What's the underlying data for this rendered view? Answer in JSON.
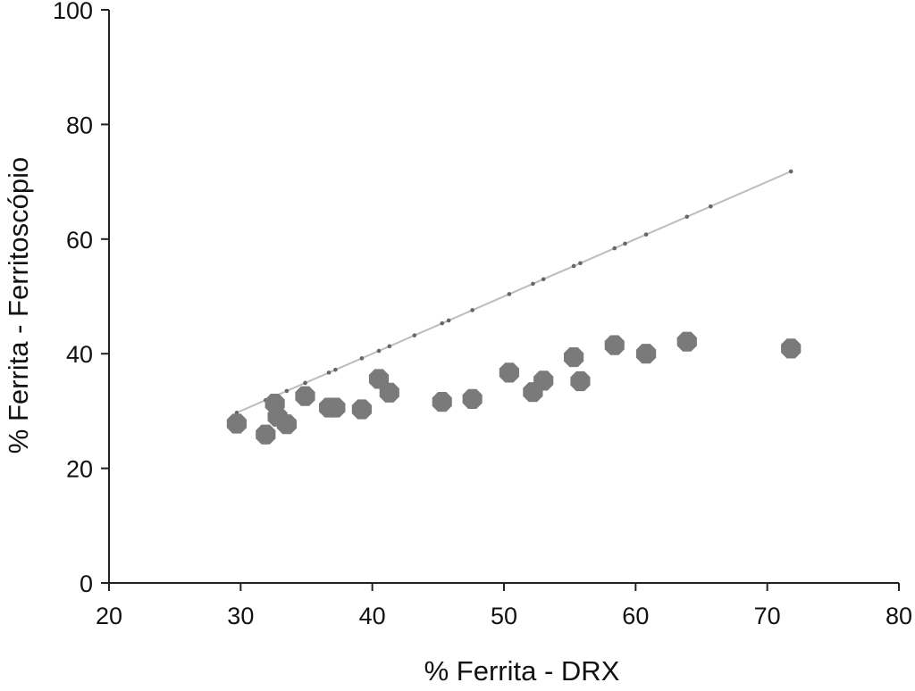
{
  "chart_data": {
    "type": "scatter",
    "title": "",
    "xlabel": "% Ferrita - DRX",
    "ylabel": "% Ferrita - Ferritoscópio",
    "xlim": [
      20,
      80
    ],
    "ylim": [
      0,
      100
    ],
    "xticks": [
      20,
      30,
      40,
      50,
      60,
      70,
      80
    ],
    "yticks": [
      0,
      20,
      40,
      60,
      80,
      100
    ],
    "grid": false,
    "legend": "none",
    "colors": {
      "points": "#7a7a7a",
      "reference_line": "#bdbdbd",
      "reference_points": "#666666"
    },
    "series": [
      {
        "values": [
          {
            "x": 29.7,
            "y": 27.8
          },
          {
            "x": 31.9,
            "y": 25.9
          },
          {
            "x": 32.6,
            "y": 31.3
          },
          {
            "x": 32.8,
            "y": 29.0
          },
          {
            "x": 33.5,
            "y": 27.7
          },
          {
            "x": 34.9,
            "y": 32.6
          },
          {
            "x": 36.7,
            "y": 30.6
          },
          {
            "x": 37.2,
            "y": 30.6
          },
          {
            "x": 39.2,
            "y": 30.3
          },
          {
            "x": 40.5,
            "y": 35.6
          },
          {
            "x": 41.3,
            "y": 33.2
          },
          {
            "x": 45.3,
            "y": 31.6
          },
          {
            "x": 47.6,
            "y": 32.1
          },
          {
            "x": 50.4,
            "y": 36.7
          },
          {
            "x": 52.2,
            "y": 33.3
          },
          {
            "x": 53.0,
            "y": 35.3
          },
          {
            "x": 55.3,
            "y": 39.4
          },
          {
            "x": 55.8,
            "y": 35.2
          },
          {
            "x": 58.4,
            "y": 41.5
          },
          {
            "x": 60.8,
            "y": 40.0
          },
          {
            "x": 63.9,
            "y": 42.1
          },
          {
            "x": 71.8,
            "y": 40.9
          }
        ]
      }
    ],
    "reference_line": {
      "x": [
        29.7,
        31.9,
        32.6,
        33.5,
        34.9,
        36.7,
        37.2,
        39.2,
        40.5,
        41.3,
        43.2,
        45.3,
        45.8,
        47.6,
        50.4,
        52.2,
        53.0,
        55.3,
        55.8,
        58.4,
        59.2,
        60.8,
        63.9,
        65.7,
        71.8
      ],
      "y": [
        29.7,
        31.9,
        32.6,
        33.5,
        34.9,
        36.7,
        37.2,
        39.2,
        40.5,
        41.3,
        43.2,
        45.3,
        45.8,
        47.6,
        50.4,
        52.2,
        53.0,
        55.3,
        55.8,
        58.4,
        59.2,
        60.8,
        63.9,
        65.7,
        71.8
      ]
    }
  }
}
